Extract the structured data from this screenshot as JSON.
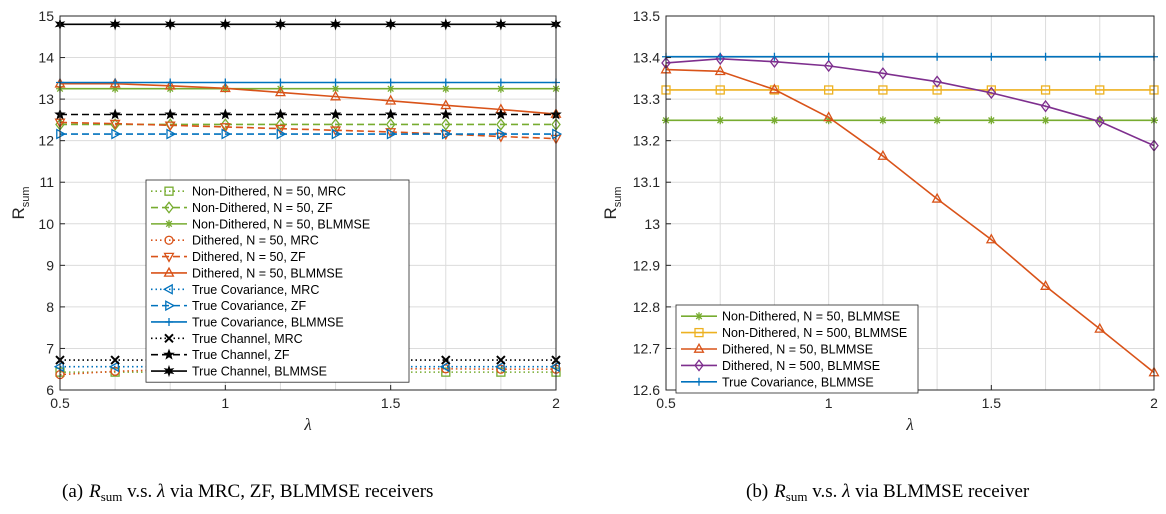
{
  "chart_data": [
    {
      "type": "line",
      "caption_prefix": "(a)",
      "caption_var": "R",
      "caption_sub": "sum",
      "caption_mid": " v.s. ",
      "caption_lambda": "λ",
      "caption_tail": " via MRC, ZF, BLMMSE receivers",
      "xlabel": "λ",
      "ylabel_main": "R",
      "ylabel_sub": "sum",
      "xlim": [
        0.5,
        2
      ],
      "ylim": [
        6,
        15
      ],
      "xticks": [
        0.5,
        1,
        1.5,
        2
      ],
      "xtick_labels": [
        "0.5",
        "1",
        "1.5",
        "2"
      ],
      "yticks": [
        6,
        7,
        8,
        9,
        10,
        11,
        12,
        13,
        14,
        15
      ],
      "ytick_labels": [
        "6",
        "7",
        "8",
        "9",
        "10",
        "11",
        "12",
        "13",
        "14",
        "15"
      ],
      "grid": true,
      "legend_position": "center",
      "x": [
        0.5,
        0.6667,
        0.8333,
        1.0,
        1.1667,
        1.3333,
        1.5,
        1.6667,
        1.8333,
        2.0
      ],
      "series": [
        {
          "name": "Non-Dithered, N = 50, MRC",
          "color": "#77AC30",
          "dash": "dotted",
          "marker": "square",
          "values": [
            6.43,
            6.43,
            6.43,
            6.43,
            6.43,
            6.43,
            6.43,
            6.43,
            6.43,
            6.43
          ]
        },
        {
          "name": "Non-Dithered, N = 50, ZF",
          "color": "#77AC30",
          "dash": "dashed",
          "marker": "diamond",
          "values": [
            12.39,
            12.39,
            12.39,
            12.39,
            12.39,
            12.39,
            12.39,
            12.39,
            12.39,
            12.39
          ]
        },
        {
          "name": "Non-Dithered, N = 50, BLMMSE",
          "color": "#77AC30",
          "dash": "solid",
          "marker": "asterisk",
          "values": [
            13.25,
            13.25,
            13.25,
            13.25,
            13.25,
            13.25,
            13.25,
            13.25,
            13.25,
            13.25
          ]
        },
        {
          "name": "Dithered, N = 50, MRC",
          "color": "#D95319",
          "dash": "dotted",
          "marker": "circle",
          "values": [
            6.37,
            6.45,
            6.49,
            6.5,
            6.51,
            6.51,
            6.51,
            6.51,
            6.5,
            6.5
          ]
        },
        {
          "name": "Dithered, N = 50, ZF",
          "color": "#D95319",
          "dash": "dashed",
          "marker": "triangle-down",
          "values": [
            12.44,
            12.41,
            12.37,
            12.33,
            12.29,
            12.25,
            12.21,
            12.16,
            12.1,
            12.05
          ]
        },
        {
          "name": "Dithered, N = 50, BLMMSE",
          "color": "#D95319",
          "dash": "solid",
          "marker": "triangle-up",
          "values": [
            13.37,
            13.37,
            13.32,
            13.26,
            13.16,
            13.06,
            12.96,
            12.85,
            12.75,
            12.64
          ]
        },
        {
          "name": "True Covariance, MRC",
          "color": "#0072BD",
          "dash": "dotted",
          "marker": "triangle-left",
          "values": [
            6.56,
            6.56,
            6.56,
            6.56,
            6.56,
            6.56,
            6.56,
            6.56,
            6.56,
            6.56
          ]
        },
        {
          "name": "True Covariance, ZF",
          "color": "#0072BD",
          "dash": "dashed",
          "marker": "triangle-right",
          "values": [
            12.16,
            12.16,
            12.16,
            12.16,
            12.16,
            12.16,
            12.16,
            12.16,
            12.16,
            12.16
          ]
        },
        {
          "name": "True Covariance, BLMMSE",
          "color": "#0072BD",
          "dash": "solid",
          "marker": "plus",
          "values": [
            13.4,
            13.4,
            13.4,
            13.4,
            13.4,
            13.4,
            13.4,
            13.4,
            13.4,
            13.4
          ]
        },
        {
          "name": "True Channel, MRC",
          "color": "#000000",
          "dash": "dotted",
          "marker": "x",
          "values": [
            6.72,
            6.72,
            6.72,
            6.72,
            6.72,
            6.72,
            6.72,
            6.72,
            6.72,
            6.72
          ]
        },
        {
          "name": "True Channel, ZF",
          "color": "#000000",
          "dash": "dashed",
          "marker": "star",
          "values": [
            12.63,
            12.63,
            12.63,
            12.63,
            12.63,
            12.63,
            12.63,
            12.63,
            12.63,
            12.63
          ]
        },
        {
          "name": "True Channel, BLMMSE",
          "color": "#000000",
          "dash": "solid",
          "marker": "hexagram",
          "values": [
            14.8,
            14.8,
            14.8,
            14.8,
            14.8,
            14.8,
            14.8,
            14.8,
            14.8,
            14.8
          ]
        }
      ]
    },
    {
      "type": "line",
      "caption_prefix": "(b)",
      "caption_var": "R",
      "caption_sub": "sum",
      "caption_mid": " v.s. ",
      "caption_lambda": "λ",
      "caption_tail": " via BLMMSE receiver",
      "xlabel": "λ",
      "ylabel_main": "R",
      "ylabel_sub": "sum",
      "xlim": [
        0.5,
        2
      ],
      "ylim": [
        12.6,
        13.5
      ],
      "xticks": [
        0.5,
        1,
        1.5,
        2
      ],
      "xtick_labels": [
        "0.5",
        "1",
        "1.5",
        "2"
      ],
      "yticks": [
        12.6,
        12.7,
        12.8,
        12.9,
        13.0,
        13.1,
        13.2,
        13.3,
        13.4,
        13.5
      ],
      "ytick_labels": [
        "12.6",
        "12.7",
        "12.8",
        "12.9",
        "13",
        "13.1",
        "13.2",
        "13.3",
        "13.4",
        "13.5"
      ],
      "grid": true,
      "legend_position": "bottom-left",
      "x": [
        0.5,
        0.6667,
        0.8333,
        1.0,
        1.1667,
        1.3333,
        1.5,
        1.6667,
        1.8333,
        2.0
      ],
      "series": [
        {
          "name": "Non-Dithered, N = 50, BLMMSE",
          "color": "#77AC30",
          "dash": "solid",
          "marker": "asterisk",
          "values": [
            13.249,
            13.249,
            13.249,
            13.249,
            13.249,
            13.249,
            13.249,
            13.249,
            13.249,
            13.249
          ]
        },
        {
          "name": "Non-Dithered, N = 500, BLMMSE",
          "color": "#EDB120",
          "dash": "solid",
          "marker": "square",
          "values": [
            13.322,
            13.322,
            13.322,
            13.322,
            13.322,
            13.322,
            13.322,
            13.322,
            13.322,
            13.322
          ]
        },
        {
          "name": "Dithered, N = 50, BLMMSE",
          "color": "#D95319",
          "dash": "solid",
          "marker": "triangle-up",
          "values": [
            13.371,
            13.367,
            13.323,
            13.256,
            13.163,
            13.06,
            12.962,
            12.85,
            12.747,
            12.642
          ]
        },
        {
          "name": "Dithered, N = 500, BLMMSE",
          "color": "#7E2F8E",
          "dash": "solid",
          "marker": "diamond",
          "values": [
            13.387,
            13.397,
            13.39,
            13.38,
            13.362,
            13.342,
            13.315,
            13.283,
            13.246,
            13.188
          ]
        },
        {
          "name": "True Covariance, BLMMSE",
          "color": "#0072BD",
          "dash": "solid",
          "marker": "plus",
          "values": [
            13.402,
            13.402,
            13.402,
            13.402,
            13.402,
            13.402,
            13.402,
            13.402,
            13.402,
            13.402
          ]
        }
      ]
    }
  ]
}
